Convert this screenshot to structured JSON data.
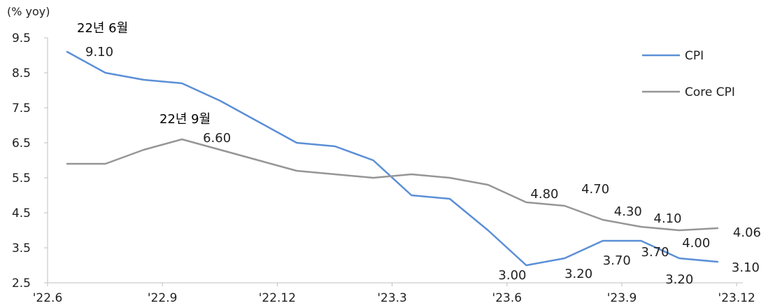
{
  "chart_data": {
    "type": "line",
    "unit_label": "(% yoy)",
    "categories": [
      "'22.6",
      "'22.7",
      "'22.8",
      "'22.9",
      "'22.10",
      "'22.11",
      "'22.12",
      "'23.1",
      "'23.2",
      "'23.3",
      "'23.4",
      "'23.5",
      "'23.6",
      "'23.7",
      "'23.8",
      "'23.9",
      "'23.10",
      "'23.11"
    ],
    "x_tick_labels": [
      "'22.6",
      "'22.9",
      "'22.12",
      "'23.3",
      "'23.6",
      "'23.9",
      "'23.12"
    ],
    "y_ticks": [
      "9.5",
      "8.5",
      "7.5",
      "6.5",
      "5.5",
      "4.5",
      "3.5",
      "2.5"
    ],
    "ylim": [
      2.5,
      9.5
    ],
    "series": [
      {
        "name": "CPI",
        "color": "#5b8fd6",
        "values": [
          9.1,
          8.5,
          8.3,
          8.2,
          7.7,
          7.1,
          6.5,
          6.4,
          6.0,
          5.0,
          4.9,
          4.0,
          3.0,
          3.2,
          3.7,
          3.7,
          3.2,
          3.1
        ]
      },
      {
        "name": "Core CPI",
        "color": "#969696",
        "values": [
          5.9,
          5.9,
          6.3,
          6.6,
          6.3,
          6.0,
          5.7,
          5.6,
          5.5,
          5.6,
          5.5,
          5.3,
          4.8,
          4.7,
          4.3,
          4.1,
          4.0,
          4.06
        ]
      }
    ],
    "data_labels": [
      {
        "series": 0,
        "index": 0,
        "text": "9.10"
      },
      {
        "series": 0,
        "index": 12,
        "text": "3.00"
      },
      {
        "series": 0,
        "index": 13,
        "text": "3.20"
      },
      {
        "series": 0,
        "index": 14,
        "text": "3.70"
      },
      {
        "series": 0,
        "index": 15,
        "text": "3.70"
      },
      {
        "series": 0,
        "index": 16,
        "text": "3.20"
      },
      {
        "series": 0,
        "index": 17,
        "text": "3.10"
      },
      {
        "series": 1,
        "index": 3,
        "text": "6.60"
      },
      {
        "series": 1,
        "index": 12,
        "text": "4.80"
      },
      {
        "series": 1,
        "index": 13,
        "text": "4.70"
      },
      {
        "series": 1,
        "index": 14,
        "text": "4.30"
      },
      {
        "series": 1,
        "index": 15,
        "text": "4.10"
      },
      {
        "series": 1,
        "index": 16,
        "text": "4.00"
      },
      {
        "series": 1,
        "index": 17,
        "text": "4.06"
      }
    ],
    "annotations": [
      "22년 6월",
      "22년 9월"
    ],
    "legend_position": "right",
    "grid": false
  }
}
